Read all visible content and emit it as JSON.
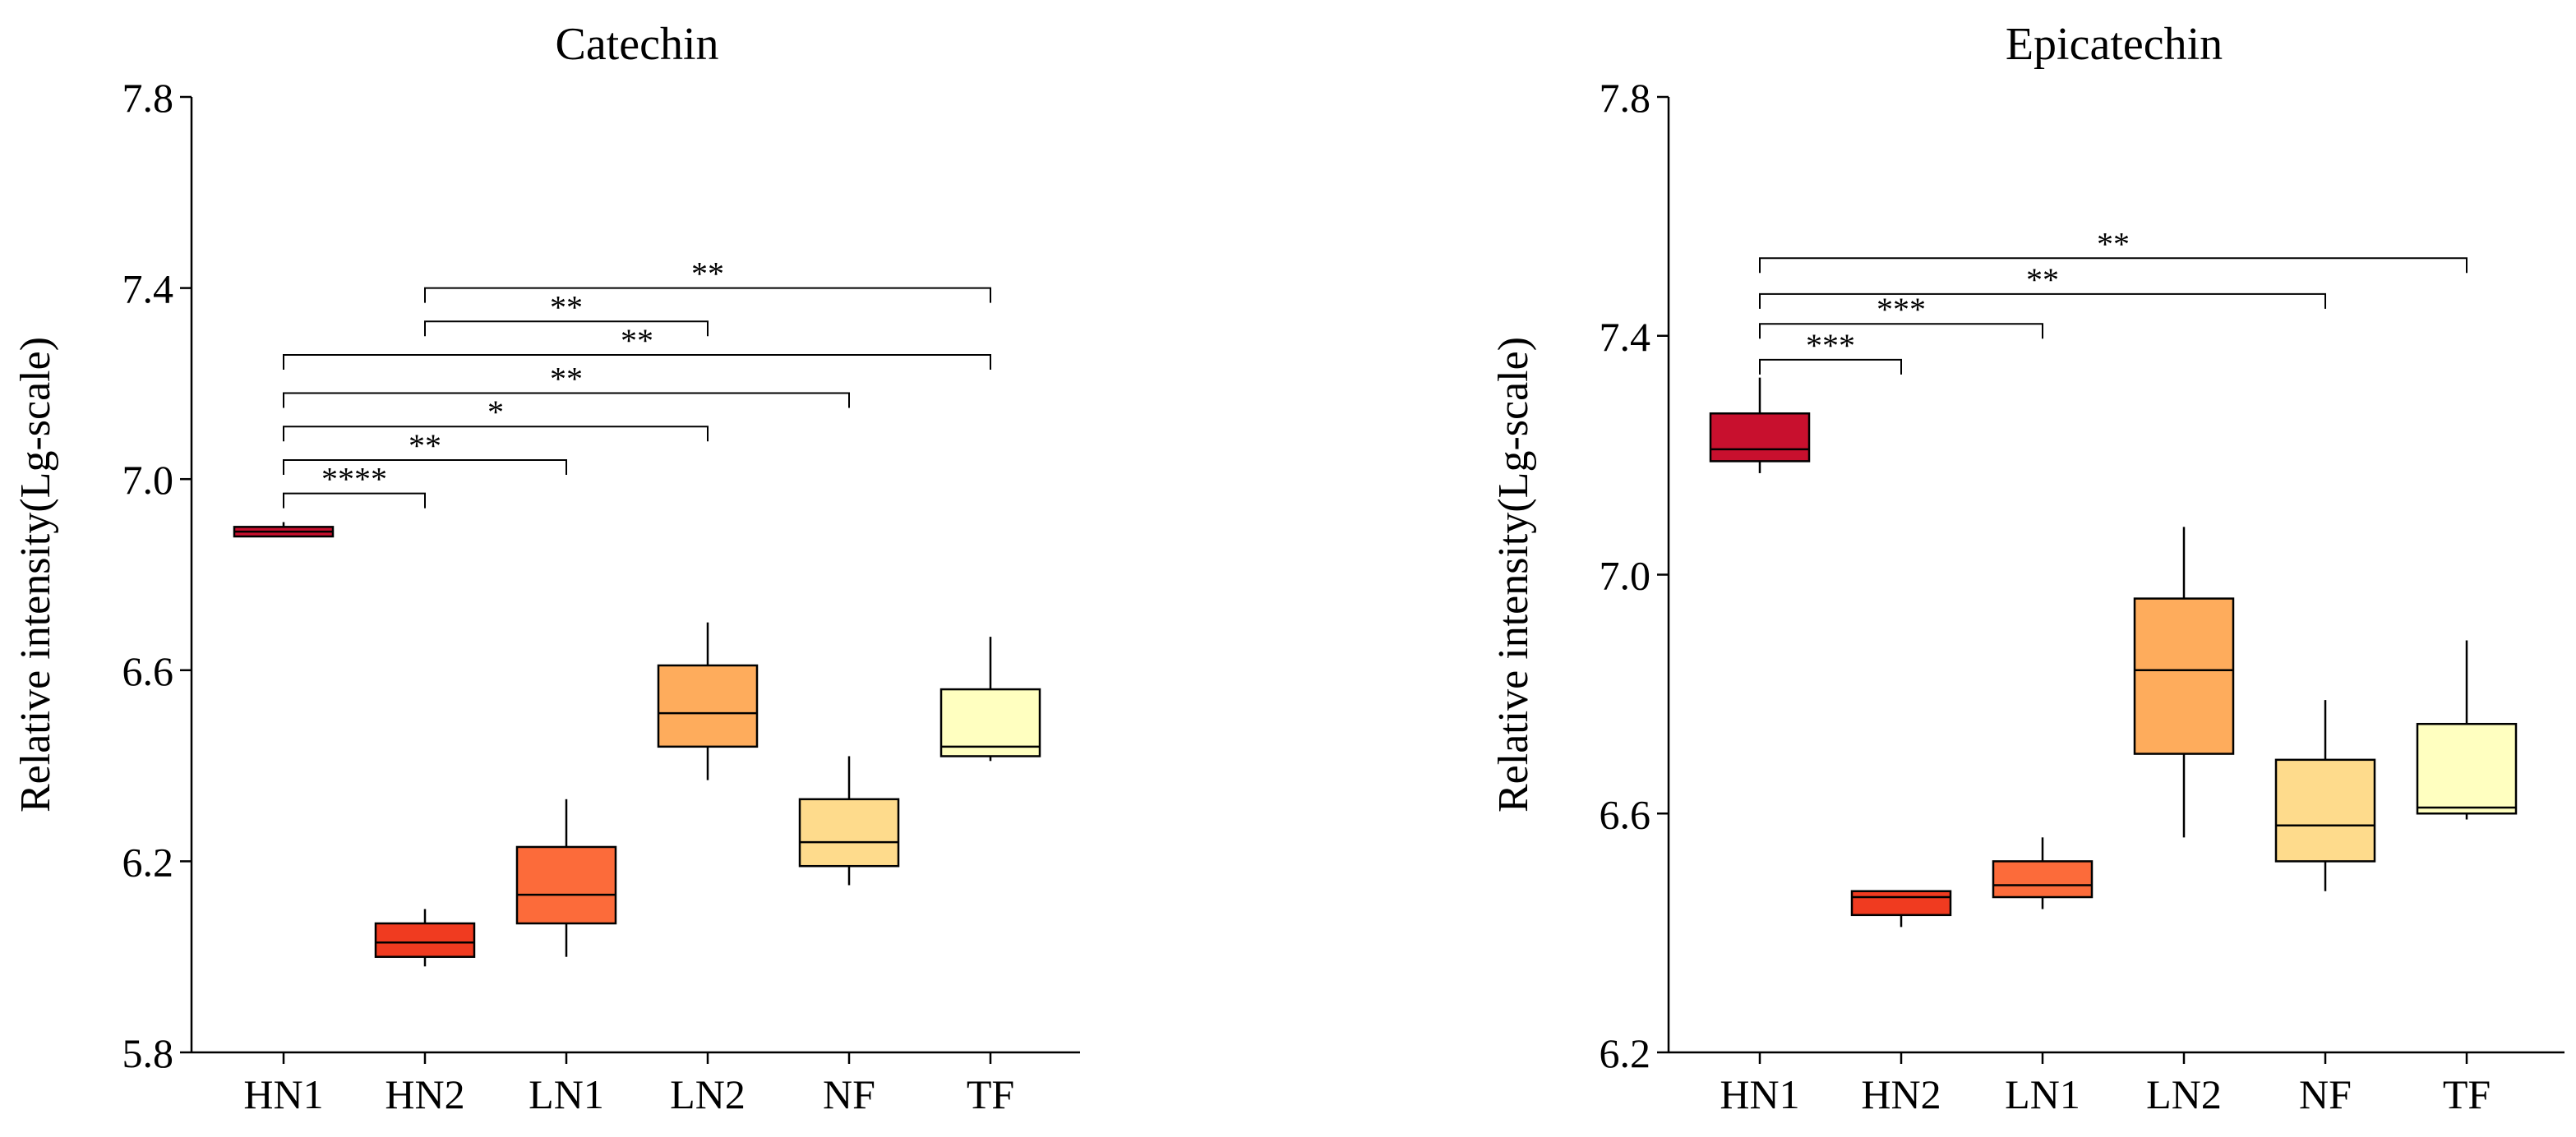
{
  "chart_data": [
    {
      "type": "box",
      "title": "Catechin",
      "ylabel": "Relative intensity(Lg-scale)",
      "xlabel": "",
      "ylim": [
        5.8,
        7.8
      ],
      "yticks": [
        "5.8",
        "6.2",
        "6.6",
        "7.0",
        "7.4",
        "7.8"
      ],
      "yticks_values": [
        5.8,
        6.2,
        6.6,
        7.0,
        7.4,
        7.8
      ],
      "categories": [
        "HN1",
        "HN2",
        "LN1",
        "LN2",
        "NF",
        "TF"
      ],
      "colors": [
        "#c8102e",
        "#f03b20",
        "#fc6b3a",
        "#feac5c",
        "#fedb8c",
        "#ffffc0"
      ],
      "boxes": [
        {
          "min": 6.88,
          "q1": 6.88,
          "median": 6.89,
          "q3": 6.9,
          "max": 6.91
        },
        {
          "min": 5.98,
          "q1": 6.0,
          "median": 6.03,
          "q3": 6.07,
          "max": 6.1
        },
        {
          "min": 6.0,
          "q1": 6.07,
          "median": 6.13,
          "q3": 6.23,
          "max": 6.33
        },
        {
          "min": 6.37,
          "q1": 6.44,
          "median": 6.51,
          "q3": 6.61,
          "max": 6.7
        },
        {
          "min": 6.15,
          "q1": 6.19,
          "median": 6.24,
          "q3": 6.33,
          "max": 6.42
        },
        {
          "min": 6.41,
          "q1": 6.42,
          "median": 6.44,
          "q3": 6.56,
          "max": 6.67
        }
      ],
      "significance": [
        {
          "from": "HN2",
          "to": "TF",
          "label": "**",
          "y": 7.4
        },
        {
          "from": "HN2",
          "to": "LN2",
          "label": "**",
          "y": 7.33
        },
        {
          "from": "HN1",
          "to": "TF",
          "label": "**",
          "y": 7.26
        },
        {
          "from": "HN1",
          "to": "NF",
          "label": "**",
          "y": 7.18
        },
        {
          "from": "HN1",
          "to": "LN2",
          "label": "*",
          "y": 7.11
        },
        {
          "from": "HN1",
          "to": "LN1",
          "label": "**",
          "y": 7.04
        },
        {
          "from": "HN1",
          "to": "HN2",
          "label": "****",
          "y": 6.97
        }
      ]
    },
    {
      "type": "box",
      "title": "Epicatechin",
      "ylabel": "Relative intensity(Lg-scale)",
      "xlabel": "",
      "ylim": [
        6.2,
        7.8
      ],
      "yticks": [
        "6.2",
        "6.6",
        "7.0",
        "7.4",
        "7.8"
      ],
      "yticks_values": [
        6.2,
        6.6,
        7.0,
        7.4,
        7.8
      ],
      "categories": [
        "HN1",
        "HN2",
        "LN1",
        "LN2",
        "NF",
        "TF"
      ],
      "colors": [
        "#c8102e",
        "#f03b20",
        "#fc6b3a",
        "#feac5c",
        "#fedb8c",
        "#ffffc0"
      ],
      "boxes": [
        {
          "min": 7.17,
          "q1": 7.19,
          "median": 7.21,
          "q3": 7.27,
          "max": 7.33
        },
        {
          "min": 6.41,
          "q1": 6.43,
          "median": 6.46,
          "q3": 6.47,
          "max": 6.47
        },
        {
          "min": 6.44,
          "q1": 6.46,
          "median": 6.48,
          "q3": 6.52,
          "max": 6.56
        },
        {
          "min": 6.56,
          "q1": 6.7,
          "median": 6.84,
          "q3": 6.96,
          "max": 7.08
        },
        {
          "min": 6.47,
          "q1": 6.52,
          "median": 6.58,
          "q3": 6.69,
          "max": 6.79
        },
        {
          "min": 6.59,
          "q1": 6.6,
          "median": 6.61,
          "q3": 6.75,
          "max": 6.89
        }
      ],
      "significance": [
        {
          "from": "HN1",
          "to": "TF",
          "label": "**",
          "y": 7.53
        },
        {
          "from": "HN1",
          "to": "NF",
          "label": "**",
          "y": 7.47
        },
        {
          "from": "HN1",
          "to": "LN1",
          "label": "***",
          "y": 7.42
        },
        {
          "from": "HN1",
          "to": "HN2",
          "label": "***",
          "y": 7.36
        }
      ]
    }
  ]
}
